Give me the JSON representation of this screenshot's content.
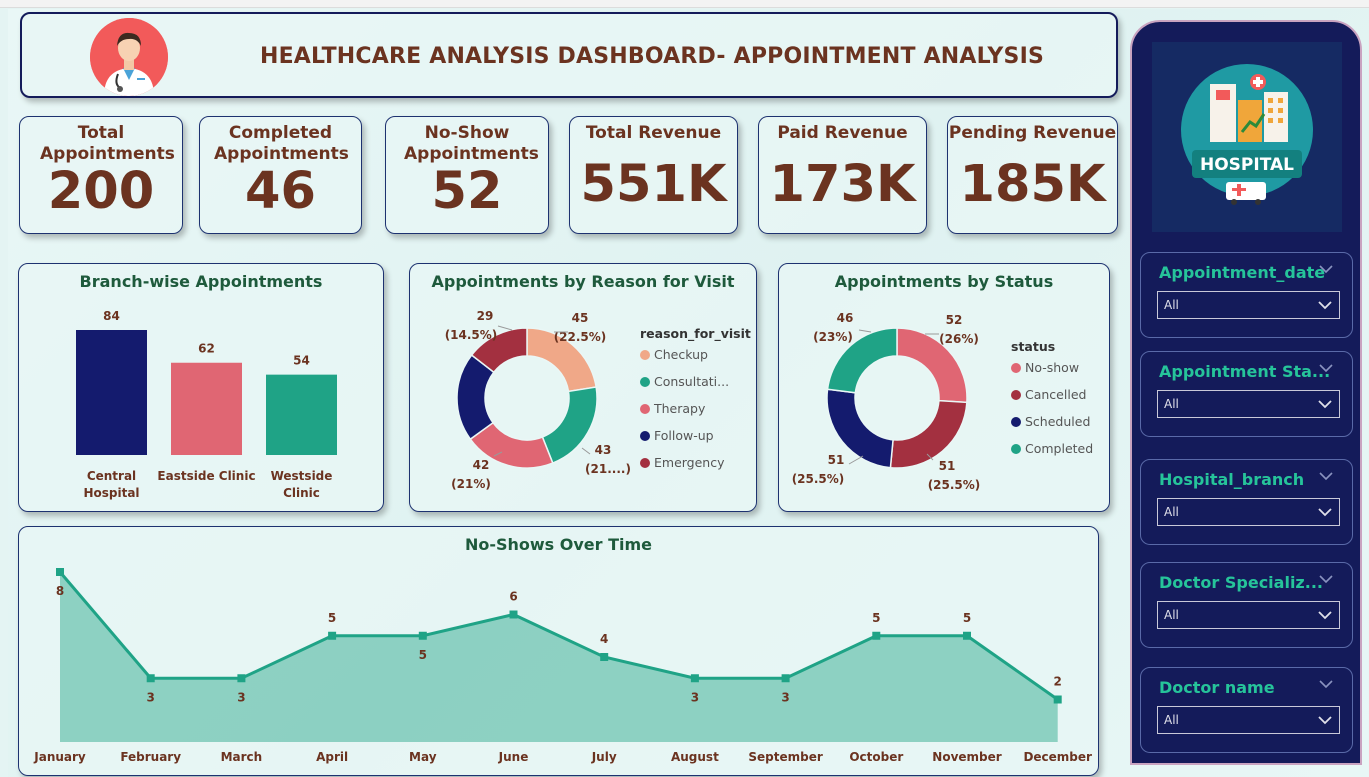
{
  "header": {
    "title": "HEALTHCARE ANALYSIS DASHBOARD- APPOINTMENT ANALYSIS"
  },
  "kpis": [
    {
      "label": "Total Appointments",
      "value": "200"
    },
    {
      "label": "Completed Appointments",
      "value": "46"
    },
    {
      "label": "No-Show Appointments",
      "value": "52"
    },
    {
      "label": "Total Revenue",
      "value": "551K"
    },
    {
      "label": "Paid Revenue",
      "value": "173K"
    },
    {
      "label": "Pending Revenue",
      "value": "185K"
    }
  ],
  "logo_text": "HOSPITAL",
  "chart_data": [
    {
      "type": "bar",
      "title": "Branch-wise Appointments",
      "categories": [
        "Central Hospital",
        "Eastside Clinic",
        "Westside Clinic"
      ],
      "values": [
        84,
        62,
        54
      ],
      "colors": [
        "#141b6e",
        "#e06673",
        "#1fa386"
      ]
    },
    {
      "type": "pie",
      "title": "Appointments by Reason for Visit",
      "legend_title": "reason_for_visit",
      "legend": [
        "Checkup",
        "Consultati...",
        "Therapy",
        "Follow-up",
        "Emergency"
      ],
      "values": [
        45,
        43,
        42,
        41,
        29
      ],
      "labels": [
        {
          "count": "45",
          "pct": "(22.5%)"
        },
        {
          "count": "43",
          "pct": "(21....)"
        },
        {
          "count": "42",
          "pct": "(21%)"
        },
        {
          "count": "",
          "pct": ""
        },
        {
          "count": "29",
          "pct": "(14.5%)"
        }
      ],
      "colors": [
        "#f0a888",
        "#1fa386",
        "#e06673",
        "#141b6e",
        "#a33040"
      ]
    },
    {
      "type": "pie",
      "title": "Appointments by Status",
      "legend_title": "status",
      "legend": [
        "No-show",
        "Cancelled",
        "Scheduled",
        "Completed"
      ],
      "values": [
        52,
        51,
        51,
        46
      ],
      "labels": [
        {
          "count": "52",
          "pct": "(26%)"
        },
        {
          "count": "51",
          "pct": "(25.5%)"
        },
        {
          "count": "51",
          "pct": "(25.5%)"
        },
        {
          "count": "46",
          "pct": "(23%)"
        }
      ],
      "colors": [
        "#e06673",
        "#a33040",
        "#141b6e",
        "#1fa386"
      ]
    },
    {
      "type": "area",
      "title": "No-Shows Over Time",
      "categories": [
        "January",
        "February",
        "March",
        "April",
        "May",
        "June",
        "July",
        "August",
        "September",
        "October",
        "November",
        "December"
      ],
      "values": [
        8,
        3,
        3,
        5,
        5,
        6,
        4,
        3,
        3,
        5,
        5,
        2
      ],
      "color": "#1fa386"
    }
  ],
  "slicers": [
    {
      "title": "Appointment_date",
      "value": "All"
    },
    {
      "title": "Appointment Sta...",
      "value": "All"
    },
    {
      "title": "Hospital_branch",
      "value": "All"
    },
    {
      "title": "Doctor Specializ...",
      "value": "All"
    },
    {
      "title": "Doctor name",
      "value": "All"
    }
  ]
}
